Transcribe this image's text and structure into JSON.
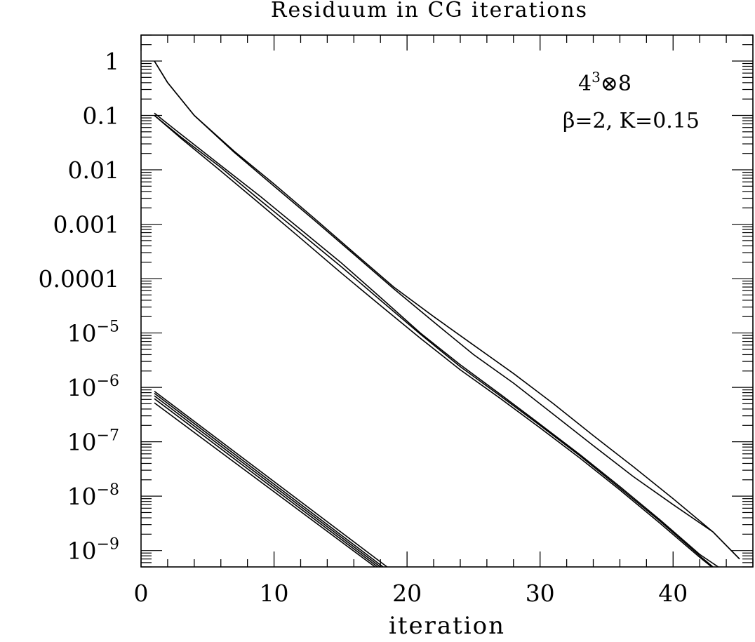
{
  "chart_data": {
    "type": "line",
    "title": "Residuum in CG iterations",
    "xlabel": "iteration",
    "ylabel": "",
    "xlim": [
      0,
      46
    ],
    "ylim": [
      5e-10,
      3
    ],
    "yscale": "log",
    "grid": false,
    "x_ticks": [
      0,
      10,
      20,
      30,
      40
    ],
    "x_tick_labels": [
      "0",
      "10",
      "20",
      "30",
      "40"
    ],
    "y_ticks": [
      1,
      0.1,
      0.01,
      0.001,
      0.0001,
      1e-05,
      1e-06,
      1e-07,
      1e-08,
      1e-09
    ],
    "y_tick_labels": [
      {
        "base": "1",
        "exp": ""
      },
      {
        "base": "0.1",
        "exp": ""
      },
      {
        "base": "0.01",
        "exp": ""
      },
      {
        "base": "0.001",
        "exp": ""
      },
      {
        "base": "0.0001",
        "exp": ""
      },
      {
        "base": "10",
        "exp": "−5"
      },
      {
        "base": "10",
        "exp": "−6"
      },
      {
        "base": "10",
        "exp": "−7"
      },
      {
        "base": "10",
        "exp": "−8"
      },
      {
        "base": "10",
        "exp": "−9"
      }
    ],
    "annotations": {
      "lattice": {
        "base": "4",
        "sup": "3",
        "rest": "⊗8"
      },
      "params": "β=2, K=0.15"
    },
    "line_color": "#000000",
    "series": [
      {
        "x": [
          1,
          2,
          4,
          7,
          10,
          13,
          16,
          19,
          22,
          25,
          28,
          31,
          34,
          37,
          40,
          43,
          45
        ],
        "y": [
          1,
          0.4,
          0.1,
          0.022,
          0.0055,
          0.0013,
          0.0003,
          7e-05,
          2e-05,
          6e-06,
          1.8e-06,
          5e-07,
          1.3e-07,
          3.5e-08,
          9e-09,
          2.2e-09,
          7e-10
        ]
      },
      {
        "x": [
          1,
          2,
          4,
          7,
          10,
          13,
          16,
          19,
          22,
          25,
          28,
          31,
          34,
          37,
          40,
          43,
          45
        ],
        "y": [
          1,
          0.4,
          0.1,
          0.021,
          0.005,
          0.0012,
          0.00028,
          6.5e-05,
          1.6e-05,
          4e-06,
          1.2e-06,
          3.2e-07,
          8.5e-08,
          2.3e-08,
          7e-09,
          2.2e-09,
          7e-10
        ]
      },
      {
        "x": [
          1,
          3,
          6,
          9,
          12,
          15,
          18,
          21,
          24,
          27,
          30,
          33,
          36,
          39,
          42,
          43.5
        ],
        "y": [
          0.11,
          0.045,
          0.012,
          0.0032,
          0.0008,
          0.0002,
          4.5e-05,
          1e-05,
          2.6e-06,
          7.5e-07,
          2.1e-07,
          5.8e-08,
          1.5e-08,
          3.7e-09,
          8.5e-10,
          4.8e-10
        ]
      },
      {
        "x": [
          1,
          3,
          6,
          9,
          12,
          15,
          18,
          21,
          24,
          27,
          30,
          33,
          36,
          39,
          42,
          43
        ],
        "y": [
          0.1,
          0.04,
          0.011,
          0.0027,
          0.00068,
          0.00017,
          4e-05,
          9.5e-06,
          2.4e-06,
          7e-07,
          2e-07,
          5.5e-08,
          1.4e-08,
          3.5e-09,
          8e-10,
          5e-10
        ]
      },
      {
        "x": [
          1,
          3,
          6,
          9,
          12,
          15,
          18,
          21,
          24,
          27,
          30,
          33,
          36,
          39,
          42,
          43
        ],
        "y": [
          0.1,
          0.038,
          0.0095,
          0.0023,
          0.00055,
          0.00013,
          3.2e-05,
          8e-06,
          2.1e-06,
          6.3e-07,
          1.8e-07,
          5e-08,
          1.3e-08,
          3.2e-09,
          7.5e-10,
          4.8e-10
        ]
      },
      {
        "x": [
          1,
          18.5
        ],
        "y": [
          8.5e-07,
          5e-10
        ]
      },
      {
        "x": [
          1,
          18.2
        ],
        "y": [
          7.8e-07,
          5e-10
        ]
      },
      {
        "x": [
          1,
          18
        ],
        "y": [
          7e-07,
          5e-10
        ]
      },
      {
        "x": [
          1,
          17.8
        ],
        "y": [
          6.2e-07,
          5e-10
        ]
      },
      {
        "x": [
          1,
          17.6
        ],
        "y": [
          5.2e-07,
          5e-10
        ]
      }
    ]
  }
}
